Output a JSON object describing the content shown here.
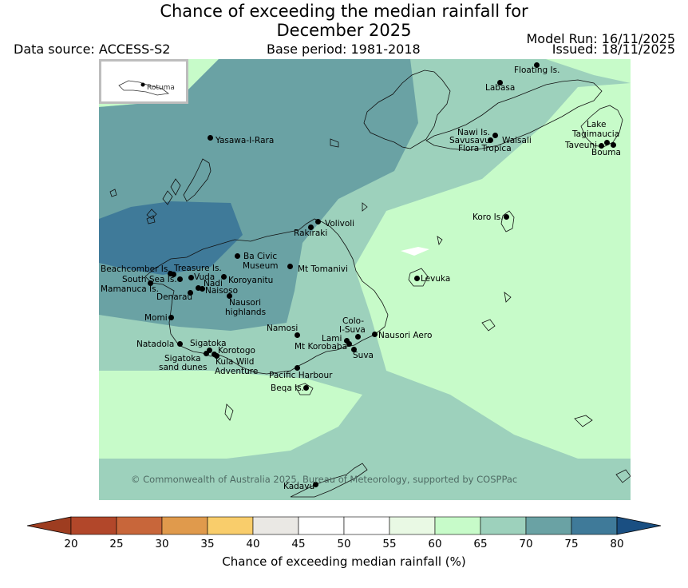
{
  "title_line1": "Chance of exceeding the median rainfall for",
  "title_line2": "December 2025",
  "data_source": "Data source: ACCESS-S2",
  "base_period": "Base period: 1981-2018",
  "model_run": "Model Run: 16/11/2025",
  "issued": "Issued: 18/11/2025",
  "inset_label": "Rotuma",
  "copyright": "© Commonwealth of Australia 2025, Bureau of Meteorology, supported by COSPPac",
  "colorbar": {
    "label": "Chance of exceeding median rainfall (%)",
    "ticks": [
      "20",
      "25",
      "30",
      "35",
      "40",
      "45",
      "50",
      "55",
      "60",
      "65",
      "70",
      "75",
      "80"
    ],
    "colors": [
      "#9e3d20",
      "#b2472a",
      "#c8663a",
      "#e09a4c",
      "#f9cd6b",
      "#eae8e4",
      "#ffffff",
      "#ffffff",
      "#e9f9e4",
      "#c7fbc9",
      "#9dd1bc",
      "#6aa2a4",
      "#3f7a99",
      "#1a4f82"
    ]
  },
  "places": {
    "floating": "Floating Is.",
    "labasa": "Labasa",
    "nawi": "Nawi Is.",
    "savusavu": "Savusavu",
    "waisali": "Waisali",
    "flora": "Flora Tropica",
    "lake": "Lake",
    "tagimaucia": "Tagimaucia",
    "taveuni": "Taveuni",
    "bouma": "Bouma",
    "yasawa": "Yasawa-I-Rara",
    "koro": "Koro Is.",
    "volivoli": "Volivoli",
    "rakiraki": "Rakiraki",
    "ba_civic": "Ba Civic",
    "museum": "Museum",
    "mt_tomanivi": "Mt Tomanivi",
    "levuka": "Levuka",
    "beachcomber": "Beachcomber Is.",
    "treasure": "Treasure Is.",
    "south_sea": "South Sea Is.",
    "vuda": "Vuda",
    "koroyanitu": "Koroyanitu",
    "nadi": "Nadi",
    "mamanuca": "Mamanuca Is.",
    "naisoso": "Naisoso",
    "denarau": "Denarau",
    "nausori_hl": "Nausori",
    "highlands": "highlands",
    "momi": "Momi",
    "namosi": "Namosi",
    "colo": "Colo-",
    "isuva": "I-Suva",
    "lami": "Lami",
    "nausori_aero": "Nausori Aero",
    "mt_korobaba": "Mt Korobaba",
    "suva": "Suva",
    "natadola": "Natadola",
    "sigatoka": "Sigatoka",
    "korotogo": "Korotogo",
    "sigatoka2": "Sigatoka",
    "sand_dunes": "sand dunes",
    "kula": "Kula Wild",
    "adventure": "Adventure",
    "pacific_harbour": "Pacific Harbour",
    "beqa": "Beqa Is.",
    "kadavu": "Kadavu"
  }
}
